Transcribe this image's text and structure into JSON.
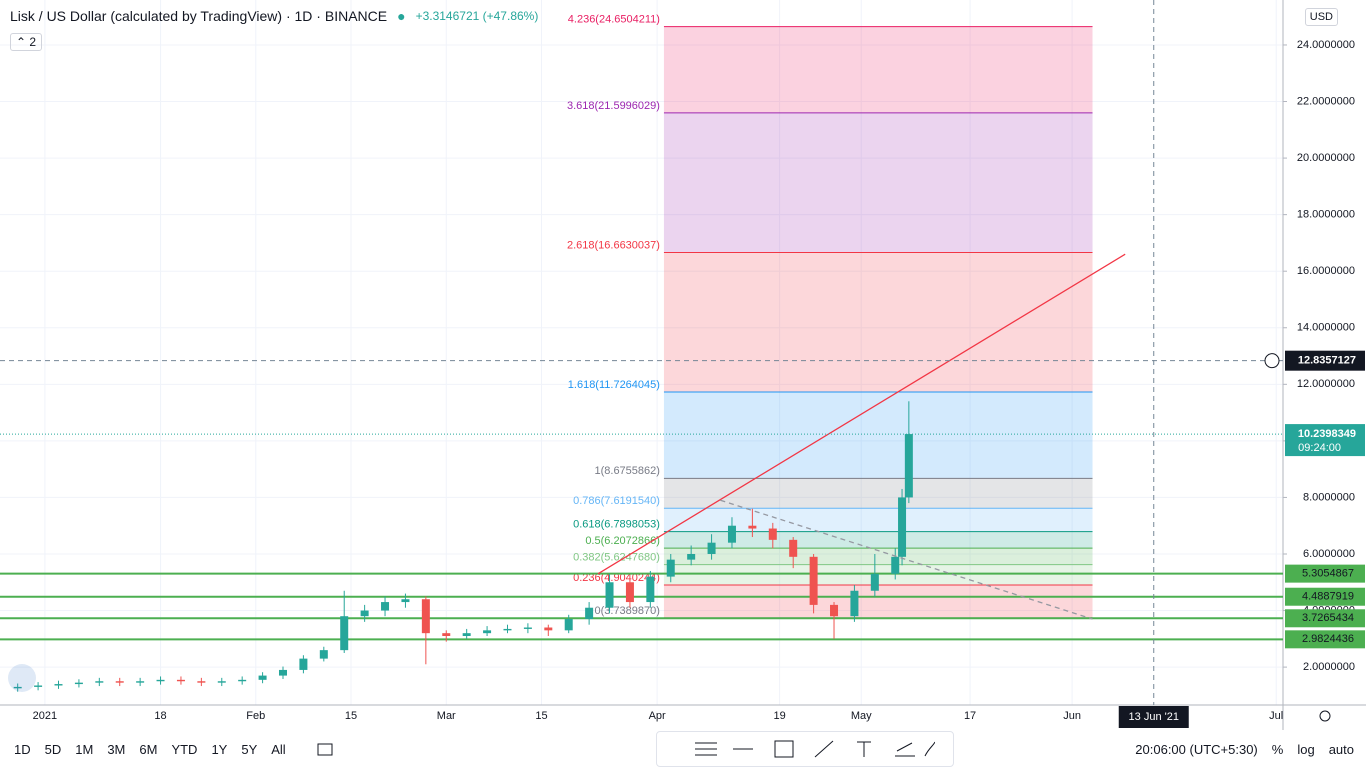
{
  "header": {
    "title": "Lisk / US Dollar (calculated by TradingView) · 1D · BINANCE",
    "change": "+3.3146721 (+47.86%)",
    "indicators": "2",
    "currency": "USD"
  },
  "chart_data": {
    "type": "candlestick",
    "up_color": "#26a69a",
    "down_color": "#ef5350",
    "grid": true,
    "x": [
      -4,
      -1,
      2,
      5,
      8,
      11,
      14,
      17,
      20,
      23,
      26,
      29,
      32,
      35,
      38,
      41,
      44,
      47,
      50,
      53,
      56,
      59,
      62,
      65,
      68,
      71,
      74,
      77,
      80,
      83,
      86,
      89,
      92,
      95,
      98,
      101,
      104,
      107,
      110,
      113,
      116,
      119,
      122,
      125,
      126,
      127
    ],
    "open": [
      1.25,
      1.3,
      1.35,
      1.4,
      1.45,
      1.5,
      1.45,
      1.5,
      1.55,
      1.5,
      1.45,
      1.5,
      1.55,
      1.7,
      1.9,
      2.3,
      2.6,
      3.8,
      4.0,
      4.3,
      4.4,
      3.2,
      3.1,
      3.2,
      3.3,
      3.35,
      3.4,
      3.3,
      3.7,
      4.1,
      5.0,
      4.3,
      5.2,
      5.8,
      6.0,
      6.4,
      7.0,
      6.9,
      6.5,
      5.9,
      4.2,
      3.8,
      4.7,
      5.3,
      5.9,
      8.0
    ],
    "high": [
      1.42,
      1.47,
      1.52,
      1.57,
      1.62,
      1.62,
      1.62,
      1.67,
      1.67,
      1.62,
      1.62,
      1.67,
      1.82,
      2.02,
      2.42,
      2.72,
      4.7,
      4.2,
      4.5,
      4.6,
      4.5,
      3.3,
      3.35,
      3.45,
      3.5,
      3.55,
      3.5,
      3.85,
      4.3,
      5.3,
      5.1,
      5.4,
      6.0,
      6.3,
      6.7,
      7.3,
      7.6,
      7.1,
      6.6,
      6.0,
      4.3,
      4.9,
      6.0,
      6.2,
      8.3,
      11.4
    ],
    "low": [
      1.13,
      1.18,
      1.23,
      1.28,
      1.33,
      1.33,
      1.33,
      1.38,
      1.38,
      1.33,
      1.33,
      1.38,
      1.43,
      1.58,
      1.78,
      2.2,
      2.5,
      3.6,
      3.8,
      4.1,
      2.1,
      2.9,
      3.0,
      3.1,
      3.2,
      3.2,
      3.1,
      3.2,
      3.5,
      3.9,
      4.1,
      4.1,
      5.0,
      5.6,
      5.8,
      6.2,
      6.6,
      6.2,
      5.5,
      3.9,
      3.0,
      3.6,
      4.5,
      5.1,
      5.6,
      7.8
    ],
    "close": [
      1.3,
      1.35,
      1.4,
      1.45,
      1.5,
      1.45,
      1.5,
      1.55,
      1.5,
      1.45,
      1.5,
      1.55,
      1.7,
      1.9,
      2.3,
      2.6,
      3.8,
      4.0,
      4.3,
      4.4,
      3.2,
      3.1,
      3.2,
      3.3,
      3.35,
      3.4,
      3.3,
      3.7,
      4.1,
      5.0,
      4.3,
      5.2,
      5.8,
      6.0,
      6.4,
      7.0,
      6.9,
      6.5,
      5.9,
      4.2,
      3.8,
      4.7,
      5.3,
      5.9,
      8.0,
      10.2398349
    ],
    "xlim": [
      -6.6,
      182
    ],
    "ylim": [
      0.66,
      25.59
    ],
    "xticks": [
      {
        "value": 0,
        "label": "2021"
      },
      {
        "value": 17,
        "label": "18"
      },
      {
        "value": 31,
        "label": "Feb"
      },
      {
        "value": 45,
        "label": "15"
      },
      {
        "value": 59,
        "label": "Mar"
      },
      {
        "value": 73,
        "label": "15"
      },
      {
        "value": 90,
        "label": "Apr"
      },
      {
        "value": 108,
        "label": "19"
      },
      {
        "value": 120,
        "label": "May"
      },
      {
        "value": 136,
        "label": "17"
      },
      {
        "value": 151,
        "label": "Jun"
      },
      {
        "value": 181,
        "label": "Jul"
      }
    ],
    "yticks": [
      {
        "value": 2,
        "label": "2.0000000"
      },
      {
        "value": 4,
        "label": "4.0000000"
      },
      {
        "value": 6,
        "label": "6.0000000"
      },
      {
        "value": 8,
        "label": "8.0000000"
      },
      {
        "value": 10,
        "label": "10.0000000"
      },
      {
        "value": 12,
        "label": "12.0000000"
      },
      {
        "value": 14,
        "label": "14.0000000"
      },
      {
        "value": 16,
        "label": "16.0000000"
      },
      {
        "value": 18,
        "label": "18.0000000"
      },
      {
        "value": 20,
        "label": "20.0000000"
      },
      {
        "value": 22,
        "label": "22.0000000"
      },
      {
        "value": 24,
        "label": "24.0000000"
      }
    ],
    "fib": {
      "x": [
        91,
        154
      ],
      "levels": [
        {
          "value": 3.738987,
          "label": "0(3.7389870)",
          "color": "#787b86"
        },
        {
          "value": 4.9040244,
          "label": "0.236(4.9040244)",
          "color": "#f23645"
        },
        {
          "value": 5.624768,
          "label": "0.382(5.6247680)",
          "color": "#81c784"
        },
        {
          "value": 6.2072866,
          "label": "0.5(6.2072866)",
          "color": "#4caf50"
        },
        {
          "value": 6.7898053,
          "label": "0.618(6.7898053)",
          "color": "#089981"
        },
        {
          "value": 7.619154,
          "label": "0.786(7.6191540)",
          "color": "#64b5f6"
        },
        {
          "value": 8.6755862,
          "label": "1(8.6755862)",
          "color": "#787b86"
        },
        {
          "value": 11.7264045,
          "label": "1.618(11.7264045)",
          "color": "#2196f3"
        },
        {
          "value": 16.6630037,
          "label": "2.618(16.6630037)",
          "color": "#f23645"
        },
        {
          "value": 21.5996029,
          "label": "3.618(21.5996029)",
          "color": "#9c27b0"
        },
        {
          "value": 24.6504211,
          "label": "4.236(24.6504211)",
          "color": "#e91e63"
        }
      ]
    },
    "trendline": {
      "x": [
        81.3,
        158.8
      ],
      "y": [
        5.3,
        16.6
      ],
      "color": "#f23645"
    },
    "dashed_line": {
      "x": [
        99.3,
        154
      ],
      "y": [
        7.9,
        3.7
      ],
      "color": "#9598a1"
    },
    "hlines": [
      {
        "value": 5.3054867,
        "color": "#4caf50"
      },
      {
        "value": 4.4887919,
        "color": "#4caf50"
      },
      {
        "value": 3.7265434,
        "color": "#4caf50"
      },
      {
        "value": 2.9824436,
        "color": "#4caf50"
      }
    ],
    "crosshair": {
      "x": {
        "value": 163,
        "label": "13 Jun '21"
      },
      "y": 12.8357127
    },
    "last_price": 10.2398349,
    "countdown": "09:24:00"
  },
  "toolbar": {
    "ranges": [
      "1D",
      "5D",
      "1M",
      "3M",
      "6M",
      "YTD",
      "1Y",
      "5Y",
      "All"
    ],
    "time": "20:06:00 (UTC+5:30)",
    "options": [
      "%",
      "log",
      "auto"
    ]
  }
}
